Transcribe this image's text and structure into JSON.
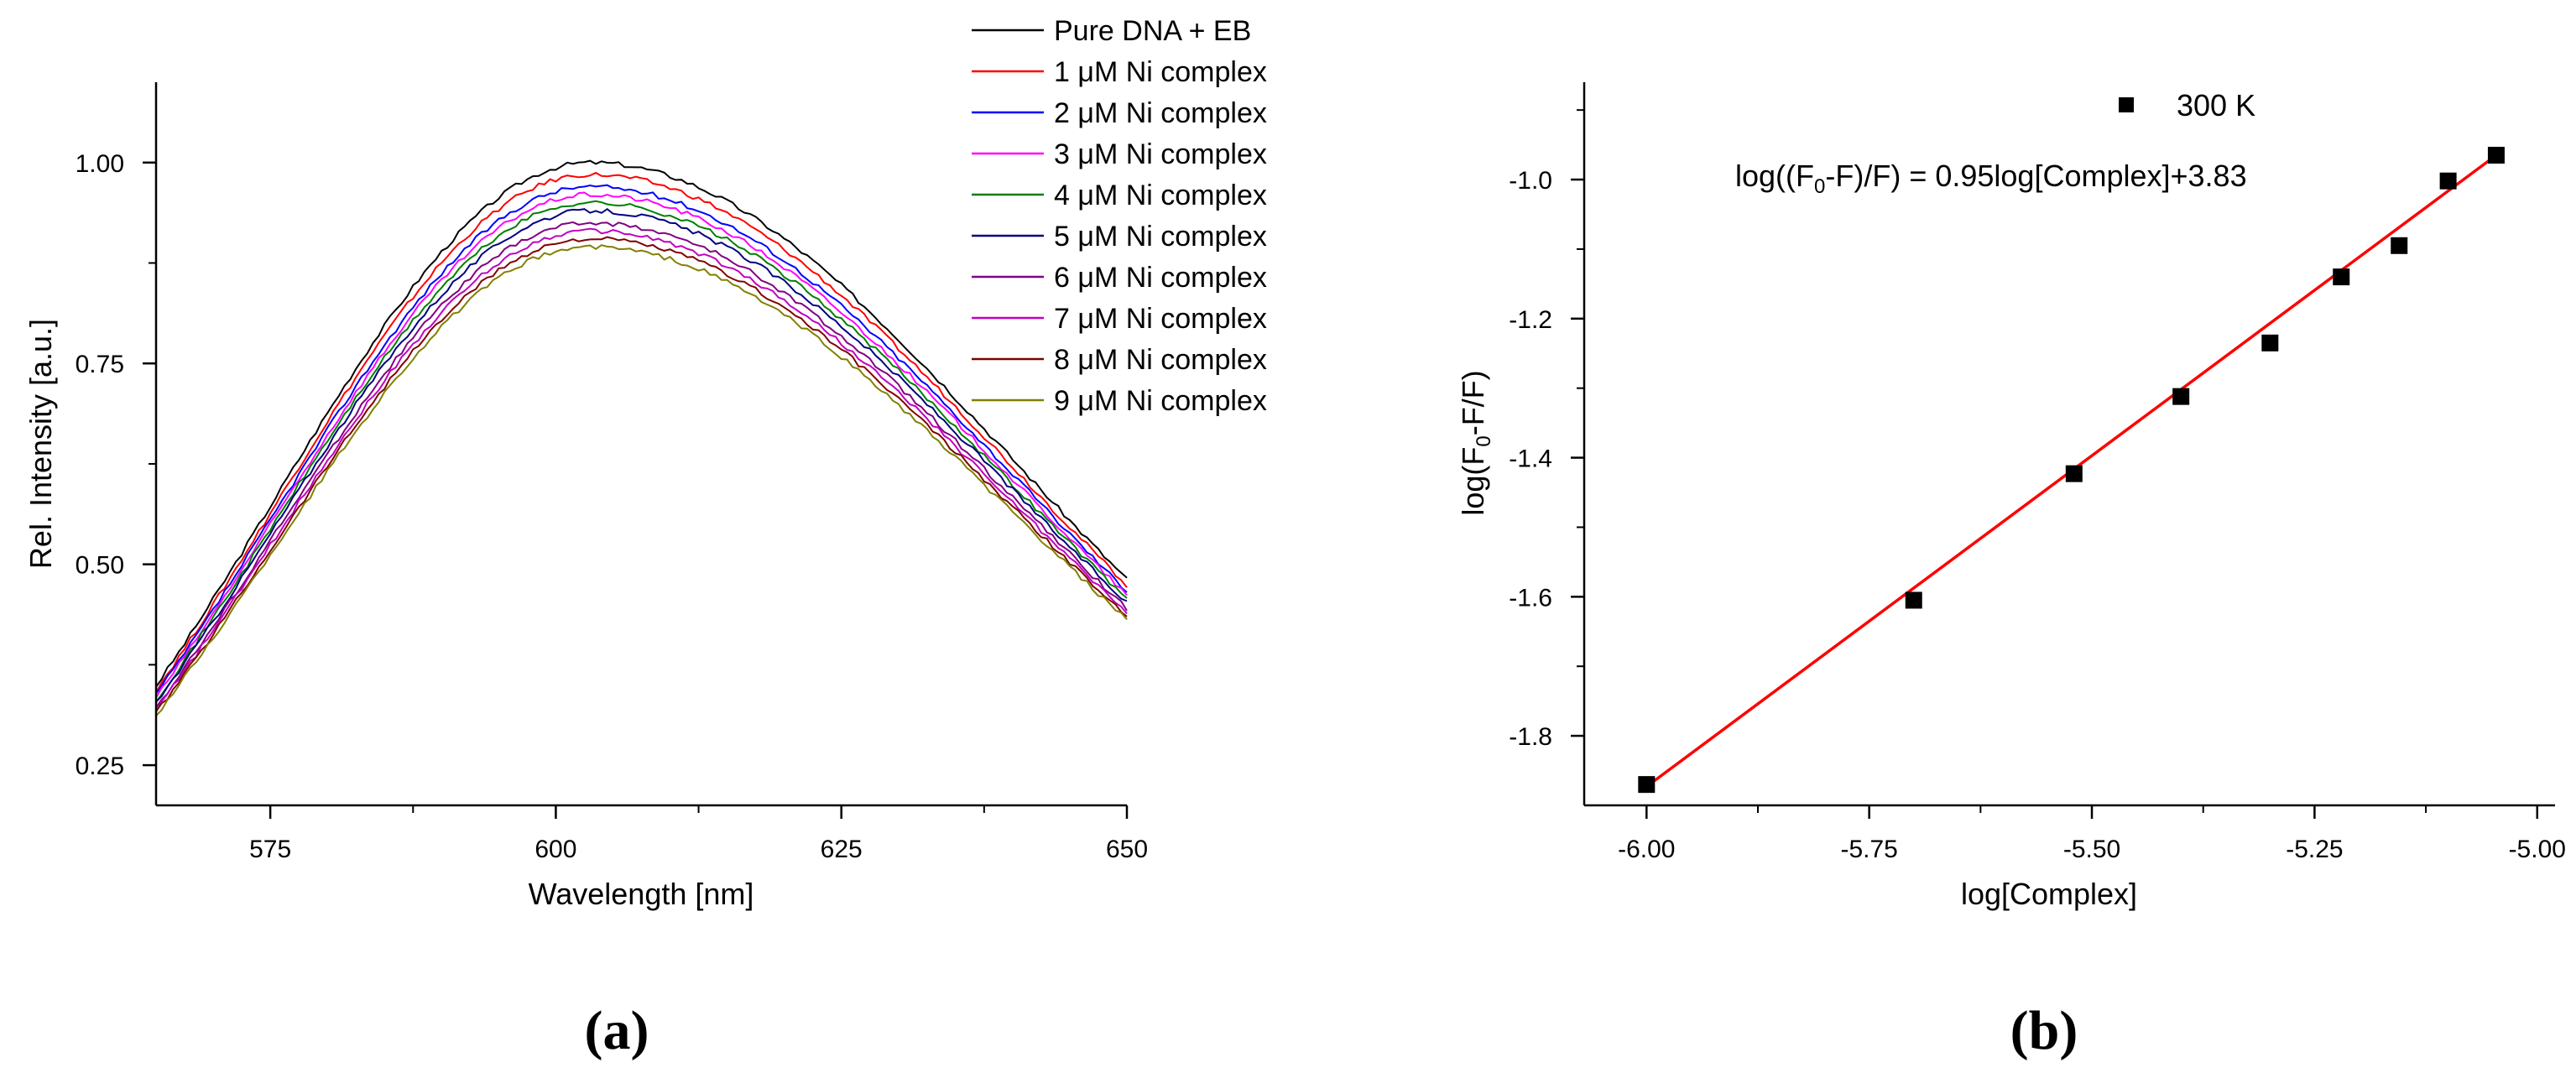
{
  "chart_data": [
    {
      "type": "line",
      "panel_label": "(a)",
      "xlabel": "Wavelength [nm]",
      "ylabel": "Rel. Intensity [a.u.]",
      "xlim": [
        565,
        650
      ],
      "ylim": [
        0.2,
        1.1
      ],
      "xticks": [
        575,
        600,
        625,
        650
      ],
      "xtick_labels": [
        "575",
        "600",
        "625",
        "650"
      ],
      "yticks": [
        0.25,
        0.5,
        0.75,
        1.0
      ],
      "ytick_labels": [
        "0.25",
        "0.50",
        "0.75",
        "1.00"
      ],
      "grid": false,
      "legend_position": "top-right",
      "curve_shape": {
        "peak_wavelength": 603,
        "width_left_nm": 27,
        "width_right_nm": 38,
        "value_at_565_fraction": 0.335,
        "value_at_650_fraction": 0.495
      },
      "series": [
        {
          "name": "Pure DNA + EB",
          "color": "#000000",
          "peak": 1.0
        },
        {
          "name": "1 μM Ni complex",
          "color": "#ff0000",
          "peak": 0.985
        },
        {
          "name": "2 μM Ni complex",
          "color": "#0000ff",
          "peak": 0.97
        },
        {
          "name": "3 μM Ni complex",
          "color": "#ff00ff",
          "peak": 0.96
        },
        {
          "name": "4 μM Ni complex",
          "color": "#008000",
          "peak": 0.95
        },
        {
          "name": "5 μM Ni complex",
          "color": "#000080",
          "peak": 0.94
        },
        {
          "name": "6 μM Ni complex",
          "color": "#800080",
          "peak": 0.925
        },
        {
          "name": "7 μM Ni complex",
          "color": "#c000c0",
          "peak": 0.915
        },
        {
          "name": "8 μM Ni complex",
          "color": "#800000",
          "peak": 0.905
        },
        {
          "name": "9 μM Ni complex",
          "color": "#808000",
          "peak": 0.895
        }
      ]
    },
    {
      "type": "scatter",
      "panel_label": "(b)",
      "xlabel": "log[Complex]",
      "ylabel": "log(F0-F/F)",
      "xlim": [
        -6.07,
        -4.98
      ],
      "ylim": [
        -1.9,
        -0.86
      ],
      "xticks": [
        -6.0,
        -5.75,
        -5.5,
        -5.25,
        -5.0
      ],
      "xtick_labels": [
        "-6.00",
        "-5.75",
        "-5.50",
        "-5.25",
        "-5.00"
      ],
      "yticks": [
        -1.8,
        -1.6,
        -1.4,
        -1.2,
        -1.0
      ],
      "ytick_labels": [
        "-1.8",
        "-1.6",
        "-1.4",
        "-1.2",
        "-1.0"
      ],
      "grid": false,
      "legend_position": "top-center",
      "series": [
        {
          "name": "300 K",
          "marker_color": "#000000",
          "x": [
            -6.0,
            -5.7,
            -5.52,
            -5.4,
            -5.3,
            -5.22,
            -5.155,
            -5.1,
            -5.046
          ],
          "y": [
            -1.87,
            -1.605,
            -1.423,
            -1.312,
            -1.235,
            -1.14,
            -1.095,
            -1.002,
            -0.965
          ]
        }
      ],
      "fit_line": {
        "color": "#ff0000",
        "x": [
          -6.0,
          -5.046
        ],
        "y": [
          -1.873,
          -0.965
        ],
        "equation": {
          "prefix": "log((F",
          "sub": "0",
          "suffix": "-F)/F) = 0.95log[Complex]+3.83"
        }
      },
      "ylabel_parts": {
        "prefix": "log(F",
        "sub": "0",
        "suffix": "-F/F)"
      }
    }
  ]
}
